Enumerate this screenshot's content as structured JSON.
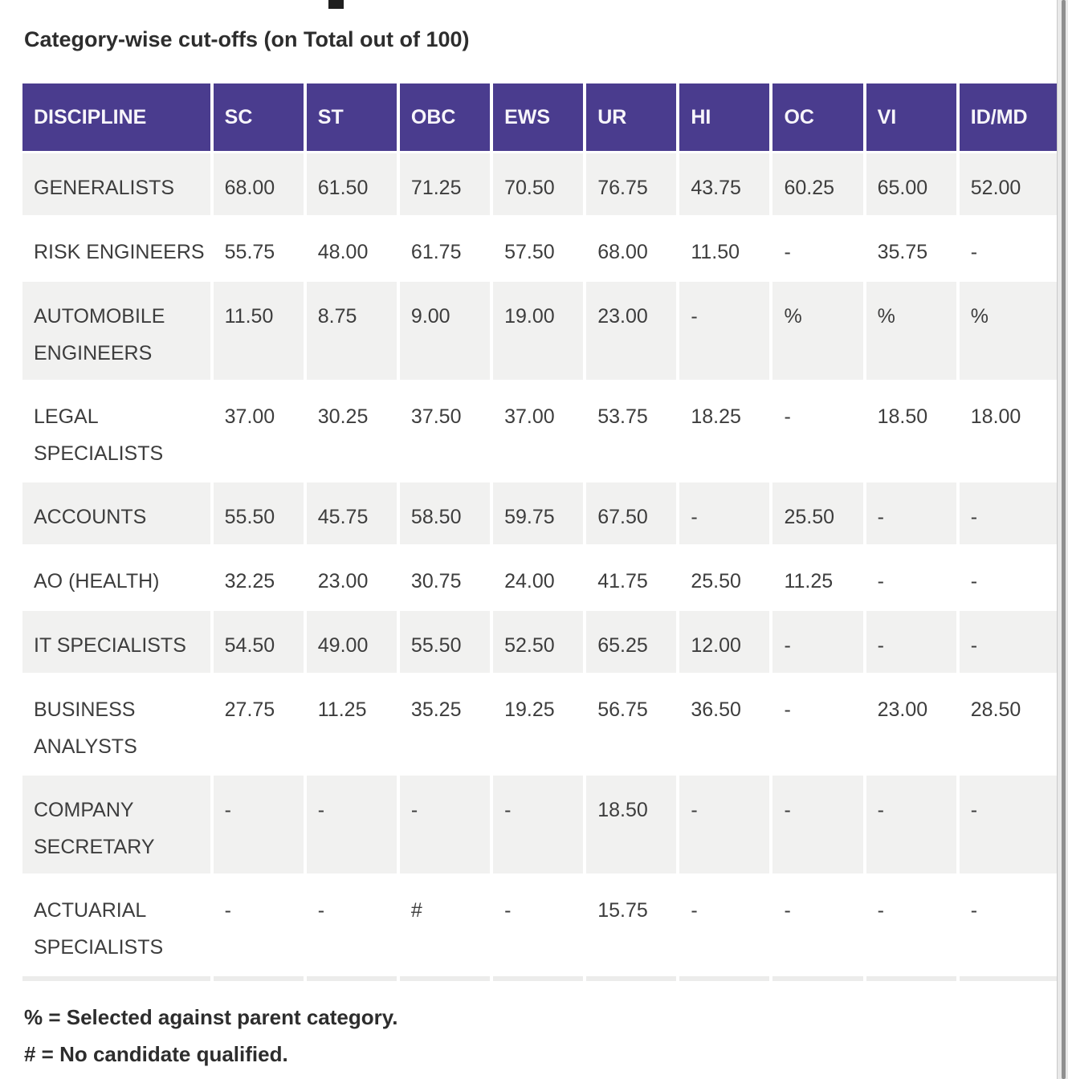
{
  "title": "Category-wise cut-offs (on Total out of 100)",
  "chart_data": {
    "type": "table",
    "title": "Category-wise cut-offs (on Total out of 100)",
    "columns": [
      "DISCIPLINE",
      "SC",
      "ST",
      "OBC",
      "EWS",
      "UR",
      "HI",
      "OC",
      "VI",
      "ID/MD"
    ],
    "rows": [
      {
        "discipline": "GENERALISTS",
        "values": [
          "68.00",
          "61.50",
          "71.25",
          "70.50",
          "76.75",
          "43.75",
          "60.25",
          "65.00",
          "52.00"
        ]
      },
      {
        "discipline": "RISK ENGINEERS",
        "values": [
          "55.75",
          "48.00",
          "61.75",
          "57.50",
          "68.00",
          "11.50",
          "-",
          "35.75",
          "-"
        ]
      },
      {
        "discipline": "AUTOMOBILE ENGINEERS",
        "values": [
          "11.50",
          "8.75",
          "9.00",
          "19.00",
          "23.00",
          "-",
          "%",
          "%",
          "%"
        ]
      },
      {
        "discipline": "LEGAL SPECIALISTS",
        "values": [
          "37.00",
          "30.25",
          "37.50",
          "37.00",
          "53.75",
          "18.25",
          "-",
          "18.50",
          "18.00"
        ]
      },
      {
        "discipline": "ACCOUNTS",
        "values": [
          "55.50",
          "45.75",
          "58.50",
          "59.75",
          "67.50",
          "-",
          "25.50",
          "-",
          "-"
        ]
      },
      {
        "discipline": "AO (HEALTH)",
        "values": [
          "32.25",
          "23.00",
          "30.75",
          "24.00",
          "41.75",
          "25.50",
          "11.25",
          "-",
          "-"
        ]
      },
      {
        "discipline": "IT SPECIALISTS",
        "values": [
          "54.50",
          "49.00",
          "55.50",
          "52.50",
          "65.25",
          "12.00",
          "-",
          "-",
          "-"
        ]
      },
      {
        "discipline": "BUSINESS ANALYSTS",
        "values": [
          "27.75",
          "11.25",
          "35.25",
          "19.25",
          "56.75",
          "36.50",
          "-",
          "23.00",
          "28.50"
        ]
      },
      {
        "discipline": "COMPANY SECRETARY",
        "values": [
          "-",
          "-",
          "-",
          "-",
          "18.50",
          "-",
          "-",
          "-",
          "-"
        ]
      },
      {
        "discipline": "ACTUARIAL SPECIALISTS",
        "values": [
          "-",
          "-",
          "#",
          "-",
          "15.75",
          "-",
          "-",
          "-",
          "-"
        ]
      }
    ],
    "footnotes": [
      "% = Selected against parent category.",
      "# = No candidate qualified."
    ]
  },
  "legend": {
    "percent_note": "% = Selected against parent category.",
    "hash_note": "# = No candidate qualified."
  },
  "colors": {
    "header_bg": "#4a3c8e",
    "header_text": "#f7f5fa",
    "row_stripe": "#f1f1f0",
    "bottom_strip": "#ececeb",
    "body_text": "#3d3d3d",
    "title_text": "#2d2d2d"
  }
}
